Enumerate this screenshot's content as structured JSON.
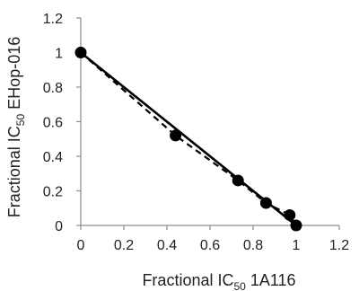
{
  "chart_data": {
    "type": "scatter",
    "xlabel": {
      "prefix": "Fractional IC",
      "sub": "50",
      "suffix": " 1A116"
    },
    "ylabel": {
      "prefix": "Fractional IC",
      "sub": "50",
      "suffix": " EHop-016"
    },
    "xlim": [
      0,
      1.2
    ],
    "ylim": [
      0,
      1.2
    ],
    "xticks": [
      "0",
      "0.2",
      "0.4",
      "0.6",
      "0.8",
      "1",
      "1.2"
    ],
    "yticks": [
      "0",
      "0.2",
      "0.4",
      "0.6",
      "0.8",
      "1",
      "1.2"
    ],
    "grid": false,
    "legend": "none",
    "series": [
      {
        "kind": "points",
        "points": [
          [
            0,
            1
          ],
          [
            0.44,
            0.52
          ],
          [
            0.73,
            0.26
          ],
          [
            0.86,
            0.13
          ],
          [
            0.97,
            0.06
          ],
          [
            1,
            0
          ]
        ]
      },
      {
        "kind": "line",
        "style": "solid",
        "points": [
          [
            0,
            1
          ],
          [
            1,
            0
          ]
        ]
      },
      {
        "kind": "line",
        "style": "dashed",
        "points": [
          [
            0,
            1
          ],
          [
            0.44,
            0.52
          ],
          [
            0.73,
            0.26
          ],
          [
            0.86,
            0.13
          ],
          [
            0.97,
            0.06
          ],
          [
            1,
            0
          ]
        ]
      }
    ],
    "colors": {
      "marker": "#000000",
      "line": "#000000",
      "axis": "#8c8c8c"
    }
  }
}
